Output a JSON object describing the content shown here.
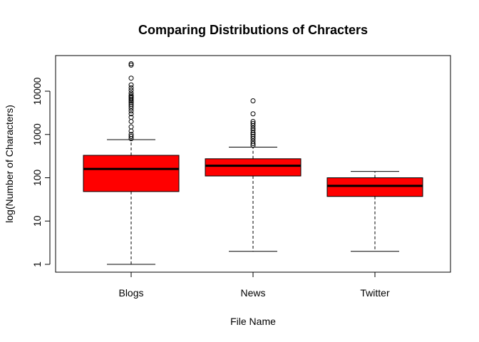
{
  "chart_data": {
    "type": "boxplot",
    "title": "Comparing Distributions of Chracters",
    "xlabel": "File Name",
    "ylabel": "log(Number of Characters)",
    "y_scale": "log10",
    "ylim": [
      0.6,
      70000
    ],
    "y_ticks": [
      1,
      10,
      100,
      1000,
      10000
    ],
    "y_tick_labels": [
      "1",
      "10",
      "100",
      "1000",
      "10000"
    ],
    "categories": [
      "Blogs",
      "News",
      "Twitter"
    ],
    "box_color": "#ff0000",
    "series": [
      {
        "name": "Blogs",
        "whisker_low": 1,
        "q1": 48,
        "median": 160,
        "q3": 330,
        "whisker_high": 760,
        "outliers": [
          800,
          900,
          1000,
          1200,
          1500,
          2000,
          2500,
          3000,
          3500,
          4000,
          4500,
          5000,
          5500,
          6000,
          6500,
          7000,
          7500,
          8000,
          9000,
          10500,
          12000,
          14000,
          20000,
          40000,
          43000
        ]
      },
      {
        "name": "News",
        "whisker_low": 2,
        "q1": 110,
        "median": 190,
        "q3": 275,
        "whisker_high": 510,
        "outliers": [
          560,
          620,
          700,
          800,
          900,
          1000,
          1100,
          1250,
          1400,
          1600,
          1800,
          2000,
          3000,
          6000
        ]
      },
      {
        "name": "Twitter",
        "whisker_low": 2,
        "q1": 37,
        "median": 65,
        "q3": 100,
        "whisker_high": 140,
        "outliers": []
      }
    ]
  }
}
